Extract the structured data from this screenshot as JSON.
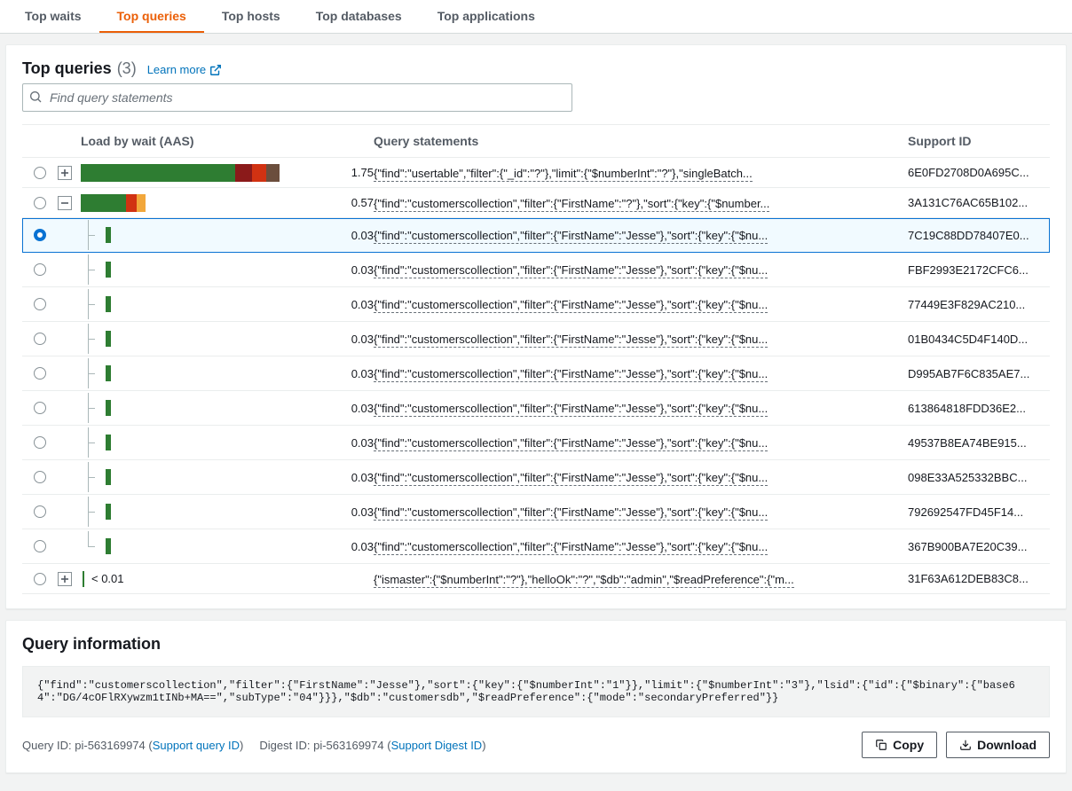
{
  "tabs": [
    {
      "label": "Top waits",
      "active": false
    },
    {
      "label": "Top queries",
      "active": true
    },
    {
      "label": "Top hosts",
      "active": false
    },
    {
      "label": "Top databases",
      "active": false
    },
    {
      "label": "Top applications",
      "active": false
    }
  ],
  "queriesPanel": {
    "title": "Top queries",
    "count": "(3)",
    "learnMore": "Learn more",
    "searchPlaceholder": "Find query statements",
    "columns": {
      "load": "Load by wait (AAS)",
      "query": "Query statements",
      "support": "Support ID"
    },
    "barMax": 1.75,
    "barFullWidthPx": 224,
    "colors": {
      "green": "#2e7d32",
      "darkred": "#8b1a1a",
      "brown": "#6b4e3d",
      "red": "#d13212",
      "orange": "#f2a73b",
      "grid": "#aab7b8"
    },
    "rows": [
      {
        "selected": false,
        "expander": "plus",
        "indent": 0,
        "last": false,
        "value": "1.75",
        "segments": [
          {
            "c": "green",
            "v": 1.36
          },
          {
            "c": "darkred",
            "v": 0.15
          },
          {
            "c": "red",
            "v": 0.12
          },
          {
            "c": "brown",
            "v": 0.12
          }
        ],
        "query": "{\"find\":\"usertable\",\"filter\":{\"_id\":\"?\"},\"limit\":{\"$numberInt\":\"?\"},\"singleBatch...",
        "support": "6E0FD2708D0A695C..."
      },
      {
        "selected": false,
        "expander": "minus",
        "indent": 0,
        "last": false,
        "value": "0.57",
        "segments": [
          {
            "c": "green",
            "v": 0.4
          },
          {
            "c": "red",
            "v": 0.09
          },
          {
            "c": "orange",
            "v": 0.08
          }
        ],
        "query": "{\"find\":\"customerscollection\",\"filter\":{\"FirstName\":\"?\"},\"sort\":{\"key\":{\"$number...",
        "support": "3A131C76AC65B102..."
      },
      {
        "selected": true,
        "expander": "",
        "indent": 1,
        "last": false,
        "value": "0.03",
        "segments": [
          {
            "c": "green",
            "v": 0.03
          }
        ],
        "query": "{\"find\":\"customerscollection\",\"filter\":{\"FirstName\":\"Jesse\"},\"sort\":{\"key\":{\"$nu...",
        "support": "7C19C88DD78407E0..."
      },
      {
        "selected": false,
        "expander": "",
        "indent": 1,
        "last": false,
        "value": "0.03",
        "segments": [
          {
            "c": "green",
            "v": 0.03
          }
        ],
        "query": "{\"find\":\"customerscollection\",\"filter\":{\"FirstName\":\"Jesse\"},\"sort\":{\"key\":{\"$nu...",
        "support": "FBF2993E2172CFC6..."
      },
      {
        "selected": false,
        "expander": "",
        "indent": 1,
        "last": false,
        "value": "0.03",
        "segments": [
          {
            "c": "green",
            "v": 0.03
          }
        ],
        "query": "{\"find\":\"customerscollection\",\"filter\":{\"FirstName\":\"Jesse\"},\"sort\":{\"key\":{\"$nu...",
        "support": "77449E3F829AC210..."
      },
      {
        "selected": false,
        "expander": "",
        "indent": 1,
        "last": false,
        "value": "0.03",
        "segments": [
          {
            "c": "green",
            "v": 0.03
          }
        ],
        "query": "{\"find\":\"customerscollection\",\"filter\":{\"FirstName\":\"Jesse\"},\"sort\":{\"key\":{\"$nu...",
        "support": "01B0434C5D4F140D..."
      },
      {
        "selected": false,
        "expander": "",
        "indent": 1,
        "last": false,
        "value": "0.03",
        "segments": [
          {
            "c": "green",
            "v": 0.03
          }
        ],
        "query": "{\"find\":\"customerscollection\",\"filter\":{\"FirstName\":\"Jesse\"},\"sort\":{\"key\":{\"$nu...",
        "support": "D995AB7F6C835AE7..."
      },
      {
        "selected": false,
        "expander": "",
        "indent": 1,
        "last": false,
        "value": "0.03",
        "segments": [
          {
            "c": "green",
            "v": 0.03
          }
        ],
        "query": "{\"find\":\"customerscollection\",\"filter\":{\"FirstName\":\"Jesse\"},\"sort\":{\"key\":{\"$nu...",
        "support": "613864818FDD36E2..."
      },
      {
        "selected": false,
        "expander": "",
        "indent": 1,
        "last": false,
        "value": "0.03",
        "segments": [
          {
            "c": "green",
            "v": 0.03
          }
        ],
        "query": "{\"find\":\"customerscollection\",\"filter\":{\"FirstName\":\"Jesse\"},\"sort\":{\"key\":{\"$nu...",
        "support": "49537B8EA74BE915..."
      },
      {
        "selected": false,
        "expander": "",
        "indent": 1,
        "last": false,
        "value": "0.03",
        "segments": [
          {
            "c": "green",
            "v": 0.03
          }
        ],
        "query": "{\"find\":\"customerscollection\",\"filter\":{\"FirstName\":\"Jesse\"},\"sort\":{\"key\":{\"$nu...",
        "support": "098E33A525332BBC..."
      },
      {
        "selected": false,
        "expander": "",
        "indent": 1,
        "last": false,
        "value": "0.03",
        "segments": [
          {
            "c": "green",
            "v": 0.03
          }
        ],
        "query": "{\"find\":\"customerscollection\",\"filter\":{\"FirstName\":\"Jesse\"},\"sort\":{\"key\":{\"$nu...",
        "support": "792692547FD45F14..."
      },
      {
        "selected": false,
        "expander": "",
        "indent": 1,
        "last": true,
        "value": "0.03",
        "segments": [
          {
            "c": "green",
            "v": 0.03
          }
        ],
        "query": "{\"find\":\"customerscollection\",\"filter\":{\"FirstName\":\"Jesse\"},\"sort\":{\"key\":{\"$nu...",
        "support": "367B900BA7E20C39..."
      },
      {
        "selected": false,
        "expander": "plus",
        "indent": 0,
        "last": false,
        "value": "< 0.01",
        "segments": [],
        "sep": true,
        "query": "{\"ismaster\":{\"$numberInt\":\"?\"},\"helloOk\":\"?\",\"$db\":\"admin\",\"$readPreference\":{\"m...",
        "support": "31F63A612DEB83C8..."
      }
    ]
  },
  "infoPanel": {
    "title": "Query information",
    "code": "{\"find\":\"customerscollection\",\"filter\":{\"FirstName\":\"Jesse\"},\"sort\":{\"key\":{\"$numberInt\":\"1\"}},\"limit\":{\"$numberInt\":\"3\"},\"lsid\":{\"id\":{\"$binary\":{\"base64\":\"DG/4cOFlRXywzm1tINb+MA==\",\"subType\":\"04\"}}},\"$db\":\"customersdb\",\"$readPreference\":{\"mode\":\"secondaryPreferred\"}}",
    "queryIdLabel": "Query ID:",
    "queryId": "pi-563169974",
    "supportQueryLink": "Support query ID",
    "digestIdLabel": "Digest ID:",
    "digestId": "pi-563169974",
    "supportDigestLink": "Support Digest ID",
    "copy": "Copy",
    "download": "Download"
  }
}
